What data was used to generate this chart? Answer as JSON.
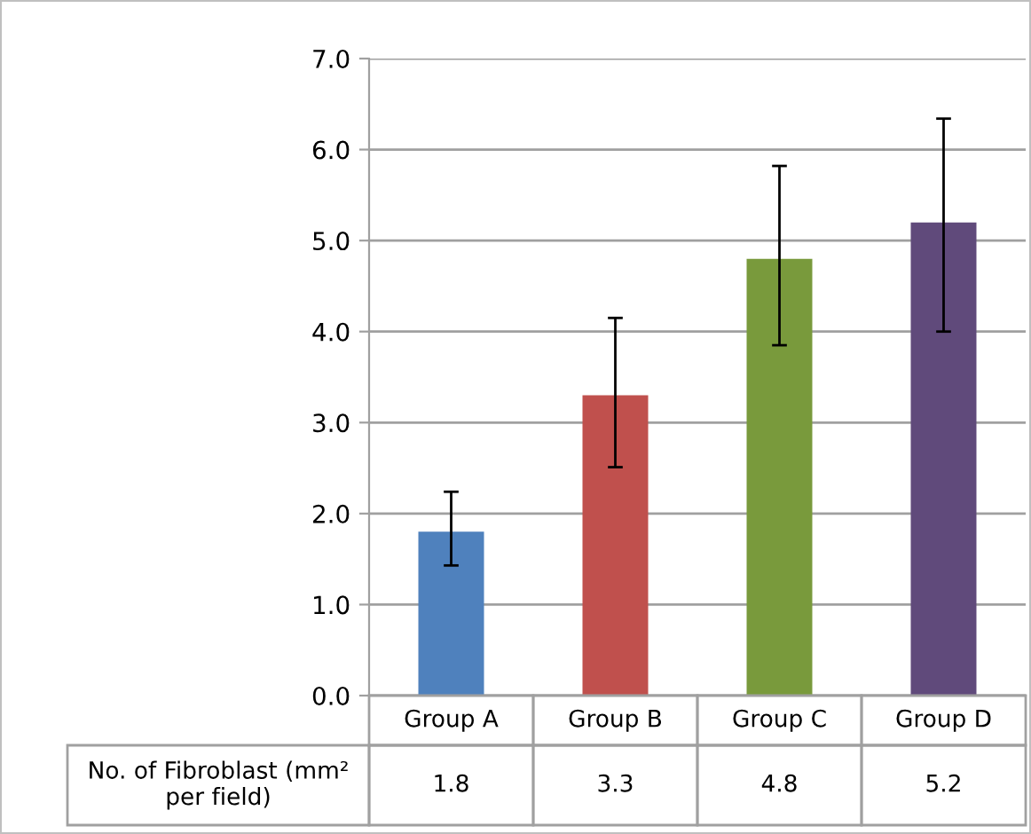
{
  "chart_data": {
    "type": "bar",
    "categories": [
      "Group A",
      "Group B",
      "Group C",
      "Group D"
    ],
    "series": [
      {
        "name": "No. of Fibroblast (mm² per field)",
        "colors": [
          "#4f81bd",
          "#c0504d",
          "#799a3c",
          "#604a7b"
        ],
        "values": [
          1.8,
          3.3,
          4.8,
          5.2
        ],
        "errors": [
          [
            1.43,
            2.24
          ],
          [
            2.51,
            4.15
          ],
          [
            3.85,
            5.82
          ],
          [
            4.0,
            6.34
          ]
        ]
      }
    ],
    "ylim": [
      0,
      7
    ],
    "yticks": [
      {
        "value": 0,
        "label": "0.0"
      },
      {
        "value": 1,
        "label": "1.0"
      },
      {
        "value": 2,
        "label": "2.0"
      },
      {
        "value": 3,
        "label": "3.0"
      },
      {
        "value": 4,
        "label": "4.0"
      },
      {
        "value": 5,
        "label": "5.0"
      },
      {
        "value": 6,
        "label": "6.0"
      },
      {
        "value": 7,
        "label": "7.0"
      }
    ],
    "grid": "y",
    "data_labels": true
  }
}
